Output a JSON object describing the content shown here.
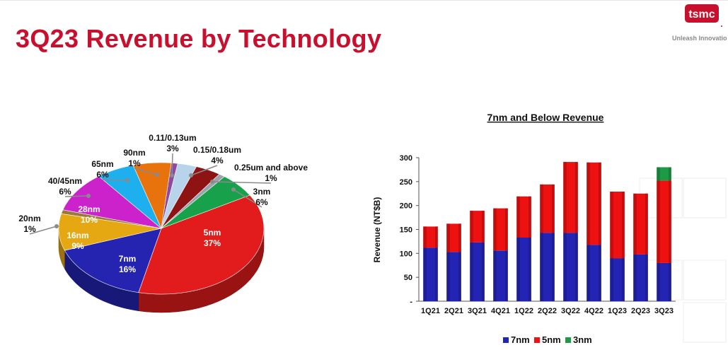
{
  "slide": {
    "title": "3Q23 Revenue by Technology",
    "logo_text": "tsmc",
    "tagline": "Unleash Innovatio"
  },
  "colors": {
    "title": "#c8102e",
    "7nm": "#2323b4",
    "5nm": "#ee1111",
    "3nm": "#1d9a46"
  },
  "chart_data": [
    {
      "type": "pie",
      "title": "",
      "slices": [
        {
          "label": "5nm",
          "value": 37,
          "pct_label": "37%",
          "color": "#e21c1c"
        },
        {
          "label": "7nm",
          "value": 16,
          "pct_label": "16%",
          "color": "#2424b0"
        },
        {
          "label": "16nm",
          "value": 9,
          "pct_label": "9%",
          "color": "#e6a812"
        },
        {
          "label": "20nm",
          "value": 1,
          "pct_label": "1%",
          "color": "#9a7a3a"
        },
        {
          "label": "28nm",
          "value": 10,
          "pct_label": "10%",
          "color": "#cc22cc"
        },
        {
          "label": "40/45nm",
          "value": 6,
          "pct_label": "6%",
          "color": "#1eb0ee"
        },
        {
          "label": "65nm",
          "value": 6,
          "pct_label": "6%",
          "color": "#e8720c"
        },
        {
          "label": "90nm",
          "value": 1,
          "pct_label": "1%",
          "color": "#8c4aa0"
        },
        {
          "label": "0.11/0.13um",
          "value": 3,
          "pct_label": "3%",
          "color": "#b8d4ea"
        },
        {
          "label": "0.15/0.18um",
          "value": 4,
          "pct_label": "4%",
          "color": "#8e1414"
        },
        {
          "label": "0.25um and above",
          "value": 1,
          "pct_label": "1%",
          "color": "#9aa2aa"
        },
        {
          "label": "3nm",
          "value": 6,
          "pct_label": "6%",
          "color": "#17a14a"
        }
      ]
    },
    {
      "type": "bar",
      "stacked": true,
      "title": "7nm and Below Revenue",
      "ylabel": "Revenue (NT$B)",
      "xlabel": "",
      "ylim": [
        0,
        300
      ],
      "yticks": [
        "-",
        "50",
        "100",
        "150",
        "200",
        "250",
        "300"
      ],
      "categories": [
        "1Q21",
        "2Q21",
        "3Q21",
        "4Q21",
        "1Q22",
        "2Q22",
        "3Q22",
        "4Q22",
        "1Q23",
        "2Q23",
        "3Q23"
      ],
      "series": [
        {
          "name": "7nm",
          "color": "#2323b4",
          "values": [
            112,
            103,
            123,
            106,
            133,
            143,
            143,
            118,
            90,
            98,
            80
          ]
        },
        {
          "name": "5nm",
          "color": "#ee1111",
          "values": [
            44,
            59,
            66,
            88,
            86,
            101,
            148,
            172,
            139,
            127,
            172
          ]
        },
        {
          "name": "3nm",
          "color": "#1d9a46",
          "values": [
            0,
            0,
            0,
            0,
            0,
            0,
            0,
            0,
            0,
            0,
            28
          ]
        }
      ],
      "legend_position": "bottom",
      "grid": false
    }
  ]
}
